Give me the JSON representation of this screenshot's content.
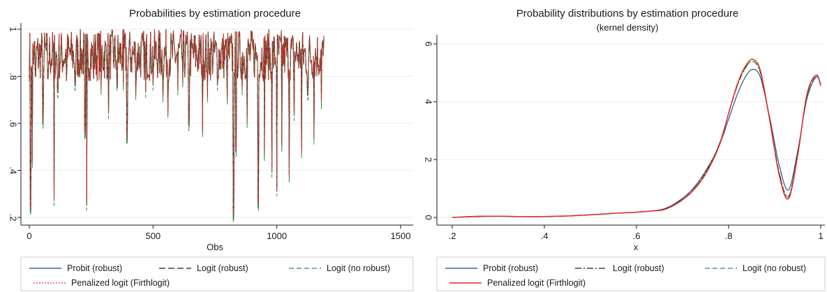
{
  "chart_data": [
    {
      "type": "line",
      "title": "Probabilities by estimation procedure",
      "subtitle": "",
      "xlabel": "Obs",
      "ylabel": "",
      "xlim": [
        0,
        1500
      ],
      "ylim": [
        0.2,
        1.0
      ],
      "xticks": [
        "0",
        "500",
        "1000",
        "1500"
      ],
      "yticks": [
        ".2",
        ".4",
        ".6",
        ".8",
        "1"
      ],
      "grid": true,
      "legend_position": "bottom",
      "series": [
        {
          "name": "Probit (robust)",
          "color": "#1a476f",
          "style": "solid"
        },
        {
          "name": "Logit (robust)",
          "color": "#1a1a1a",
          "style": "longdash"
        },
        {
          "name": "Logit (no robust)",
          "color": "#2e8b3a",
          "style": "dash"
        },
        {
          "name": "Penalized logit (Firthlogit)",
          "color": "#e8242a",
          "style": "dot"
        }
      ],
      "n_obs": 1190,
      "baseline_range": [
        0.78,
        1.0
      ],
      "dips": [
        {
          "x": 5,
          "y": 0.23
        },
        {
          "x": 12,
          "y": 0.43
        },
        {
          "x": 25,
          "y": 0.8
        },
        {
          "x": 55,
          "y": 0.6
        },
        {
          "x": 75,
          "y": 0.79
        },
        {
          "x": 100,
          "y": 0.27
        },
        {
          "x": 115,
          "y": 0.73
        },
        {
          "x": 150,
          "y": 0.78
        },
        {
          "x": 185,
          "y": 0.76
        },
        {
          "x": 225,
          "y": 0.55
        },
        {
          "x": 232,
          "y": 0.25
        },
        {
          "x": 260,
          "y": 0.79
        },
        {
          "x": 290,
          "y": 0.74
        },
        {
          "x": 320,
          "y": 0.64
        },
        {
          "x": 355,
          "y": 0.76
        },
        {
          "x": 380,
          "y": 0.76
        },
        {
          "x": 395,
          "y": 0.53
        },
        {
          "x": 430,
          "y": 0.72
        },
        {
          "x": 470,
          "y": 0.73
        },
        {
          "x": 500,
          "y": 0.76
        },
        {
          "x": 540,
          "y": 0.71
        },
        {
          "x": 560,
          "y": 0.64
        },
        {
          "x": 600,
          "y": 0.74
        },
        {
          "x": 620,
          "y": 0.77
        },
        {
          "x": 645,
          "y": 0.59
        },
        {
          "x": 700,
          "y": 0.56
        },
        {
          "x": 720,
          "y": 0.71
        },
        {
          "x": 760,
          "y": 0.76
        },
        {
          "x": 800,
          "y": 0.7
        },
        {
          "x": 825,
          "y": 0.2
        },
        {
          "x": 835,
          "y": 0.48
        },
        {
          "x": 860,
          "y": 0.74
        },
        {
          "x": 880,
          "y": 0.6
        },
        {
          "x": 925,
          "y": 0.25
        },
        {
          "x": 950,
          "y": 0.46
        },
        {
          "x": 980,
          "y": 0.39
        },
        {
          "x": 1000,
          "y": 0.31
        },
        {
          "x": 1020,
          "y": 0.5
        },
        {
          "x": 1050,
          "y": 0.37
        },
        {
          "x": 1070,
          "y": 0.63
        },
        {
          "x": 1100,
          "y": 0.47
        },
        {
          "x": 1125,
          "y": 0.72
        },
        {
          "x": 1150,
          "y": 0.53
        },
        {
          "x": 1180,
          "y": 0.68
        }
      ]
    },
    {
      "type": "line",
      "title": "Probability distributions by estimation procedure",
      "subtitle": "(kernel density)",
      "xlabel": "x",
      "ylabel": "",
      "xlim": [
        0.2,
        1.0
      ],
      "ylim": [
        0,
        6
      ],
      "xticks": [
        ".2",
        ".4",
        ".6",
        ".8",
        "1"
      ],
      "yticks": [
        "0",
        "2",
        "4",
        "6"
      ],
      "grid": true,
      "legend_position": "bottom",
      "series": [
        {
          "name": "Probit (robust)",
          "color": "#1a476f",
          "style": "solid",
          "x": [
            0.2,
            0.25,
            0.3,
            0.35,
            0.4,
            0.45,
            0.5,
            0.55,
            0.6,
            0.63,
            0.66,
            0.69,
            0.72,
            0.75,
            0.78,
            0.8,
            0.82,
            0.84,
            0.855,
            0.87,
            0.89,
            0.91,
            0.93,
            0.95,
            0.97,
            0.99,
            1.0
          ],
          "y": [
            0.0,
            0.04,
            0.04,
            0.03,
            0.03,
            0.05,
            0.09,
            0.14,
            0.18,
            0.22,
            0.3,
            0.55,
            0.95,
            1.6,
            2.5,
            3.4,
            4.3,
            4.95,
            5.12,
            4.8,
            3.4,
            1.8,
            0.95,
            2.3,
            4.1,
            4.85,
            4.6
          ]
        },
        {
          "name": "Logit (robust)",
          "color": "#1a1a1a",
          "style": "dashdot",
          "x": [
            0.2,
            0.25,
            0.3,
            0.35,
            0.4,
            0.45,
            0.5,
            0.55,
            0.6,
            0.63,
            0.66,
            0.69,
            0.72,
            0.75,
            0.78,
            0.8,
            0.82,
            0.84,
            0.855,
            0.87,
            0.89,
            0.91,
            0.93,
            0.95,
            0.97,
            0.99,
            1.0
          ],
          "y": [
            0.0,
            0.03,
            0.04,
            0.03,
            0.03,
            0.05,
            0.09,
            0.14,
            0.18,
            0.22,
            0.28,
            0.52,
            0.9,
            1.55,
            2.55,
            3.6,
            4.6,
            5.25,
            5.38,
            4.95,
            3.3,
            1.55,
            0.72,
            2.2,
            4.2,
            4.9,
            4.6
          ]
        },
        {
          "name": "Logit (no robust)",
          "color": "#2e8b3a",
          "style": "dash",
          "x": [
            0.2,
            0.25,
            0.3,
            0.35,
            0.4,
            0.45,
            0.5,
            0.55,
            0.6,
            0.63,
            0.66,
            0.69,
            0.72,
            0.75,
            0.78,
            0.8,
            0.82,
            0.84,
            0.855,
            0.87,
            0.89,
            0.91,
            0.93,
            0.95,
            0.97,
            0.99,
            1.0
          ],
          "y": [
            0.0,
            0.03,
            0.04,
            0.03,
            0.03,
            0.05,
            0.09,
            0.14,
            0.18,
            0.22,
            0.28,
            0.52,
            0.9,
            1.55,
            2.55,
            3.6,
            4.6,
            5.25,
            5.38,
            4.95,
            3.3,
            1.55,
            0.72,
            2.2,
            4.2,
            4.9,
            4.6
          ]
        },
        {
          "name": "Penalized logit (Firthlogit)",
          "color": "#e8242a",
          "style": "solid",
          "x": [
            0.2,
            0.25,
            0.3,
            0.35,
            0.4,
            0.45,
            0.5,
            0.55,
            0.6,
            0.63,
            0.66,
            0.69,
            0.72,
            0.75,
            0.78,
            0.8,
            0.82,
            0.84,
            0.855,
            0.87,
            0.89,
            0.91,
            0.93,
            0.95,
            0.97,
            0.99,
            1.0
          ],
          "y": [
            0.0,
            0.03,
            0.04,
            0.03,
            0.03,
            0.05,
            0.09,
            0.14,
            0.18,
            0.22,
            0.27,
            0.5,
            0.88,
            1.5,
            2.5,
            3.6,
            4.65,
            5.32,
            5.45,
            5.02,
            3.3,
            1.45,
            0.65,
            2.15,
            4.25,
            4.92,
            4.55
          ]
        }
      ]
    }
  ]
}
